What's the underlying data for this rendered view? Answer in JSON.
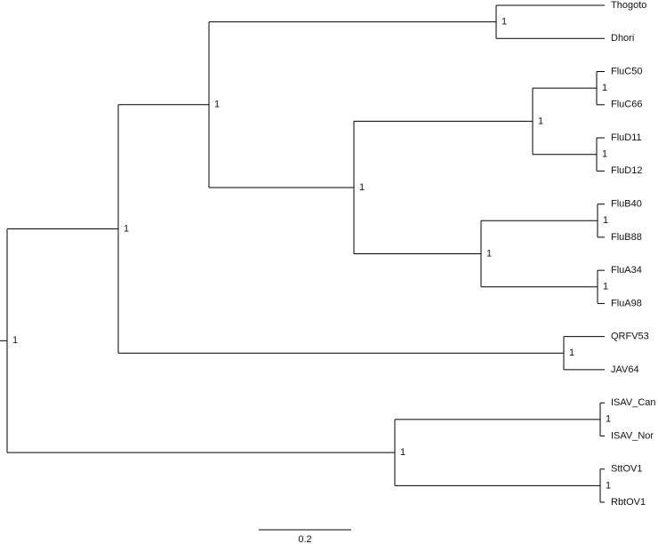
{
  "tree": {
    "support": 1,
    "children": [
      {
        "support": 1,
        "children": [
          {
            "support": 1,
            "children": [
              {
                "support": 1,
                "children": [
                  {
                    "label": "Thogoto"
                  },
                  {
                    "label": "Dhori"
                  }
                ]
              },
              {
                "support": 1,
                "children": [
                  {
                    "support": 1,
                    "children": [
                      {
                        "support": 1,
                        "children": [
                          {
                            "label": "FluC50"
                          },
                          {
                            "label": "FluC66"
                          }
                        ]
                      },
                      {
                        "support": 1,
                        "children": [
                          {
                            "label": "FluD11"
                          },
                          {
                            "label": "FluD12"
                          }
                        ]
                      }
                    ]
                  },
                  {
                    "support": 1,
                    "children": [
                      {
                        "support": 1,
                        "children": [
                          {
                            "label": "FluB40"
                          },
                          {
                            "label": "FluB88"
                          }
                        ]
                      },
                      {
                        "support": 1,
                        "children": [
                          {
                            "label": "FluA34"
                          },
                          {
                            "label": "FluA98"
                          }
                        ]
                      }
                    ]
                  }
                ]
              }
            ]
          },
          {
            "support": 1,
            "children": [
              {
                "label": "QRFV53"
              },
              {
                "label": "JAV64"
              }
            ]
          }
        ]
      },
      {
        "support": 1,
        "children": [
          {
            "support": 1,
            "children": [
              {
                "label": "ISAV_Can"
              },
              {
                "label": "ISAV_Nor"
              }
            ]
          },
          {
            "support": 1,
            "children": [
              {
                "label": "SttOV1"
              },
              {
                "label": "RbtOV1"
              }
            ]
          }
        ]
      }
    ]
  },
  "scale_bar": {
    "label": "0.2"
  }
}
